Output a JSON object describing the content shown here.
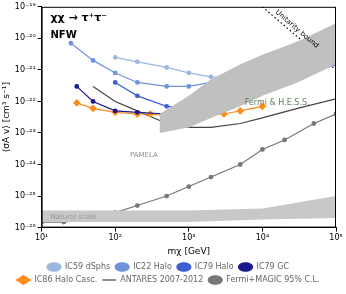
{
  "chart_data": {
    "type": "line",
    "title": "χχ → τ⁺τ⁻",
    "subtitle": "NFW",
    "x_label": "mχ [GeV]",
    "y_label": "⟨σA v⟩ [cm³ s⁻¹]",
    "log": true,
    "grid": false,
    "legend": "bottom",
    "xlim": [
      10,
      100000
    ],
    "ylim": [
      1e-26,
      1e-19
    ],
    "xticks": [
      {
        "value": 10,
        "label": "10¹"
      },
      {
        "value": 100,
        "label": "10²"
      },
      {
        "value": 1000,
        "label": "10³"
      },
      {
        "value": 10000,
        "label": "10⁴"
      },
      {
        "value": 100000,
        "label": "10⁵"
      }
    ],
    "yticks": [
      {
        "value": 1e-26,
        "label": "10⁻²⁶"
      },
      {
        "value": 1e-25,
        "label": "10⁻²⁵"
      },
      {
        "value": 1e-24,
        "label": "10⁻²⁴"
      },
      {
        "value": 1e-23,
        "label": "10⁻²³"
      },
      {
        "value": 1e-22,
        "label": "10⁻²²"
      },
      {
        "value": 1e-21,
        "label": "10⁻²¹"
      },
      {
        "value": 1e-20,
        "label": "10⁻²⁰"
      },
      {
        "value": 1e-19,
        "label": "10⁻¹⁹"
      }
    ],
    "regions": [
      {
        "name": "Natural scale",
        "color": "#c8c8c8",
        "x": [
          10,
          1000,
          10000,
          100000
        ],
        "lower": [
          1.5e-26,
          1.5e-26,
          1.8e-26,
          2e-26
        ],
        "upper": [
          3.5e-26,
          3.5e-26,
          4e-26,
          1e-25
        ]
      },
      {
        "name": "PAMELA",
        "color": "#c0c0c0",
        "x": [
          400,
          1000,
          2000,
          5000,
          10000,
          30000,
          100000
        ],
        "lower": [
          1e-23,
          1.5e-23,
          3e-23,
          7e-23,
          1.5e-22,
          4e-22,
          1.5e-21
        ],
        "upper": [
          4e-23,
          1.5e-22,
          5e-22,
          1.5e-21,
          3e-21,
          8e-21,
          3e-20
        ]
      },
      {
        "name": "Fermi & H.E.S.S.",
        "color": "#9fd89a",
        "x": [
          1500,
          2000,
          3000,
          5000,
          8000
        ],
        "lower": [
          3e-23,
          4e-23,
          5e-23,
          8e-23,
          1.5e-22
        ],
        "upper": [
          8e-23,
          1.5e-22,
          2.5e-22,
          3e-22,
          3e-22
        ]
      },
      {
        "color": "#2e9e3e",
        "x": [
          2500,
          3000,
          4000,
          5000
        ],
        "lower": [
          6e-23,
          7e-23,
          9e-23,
          1.2e-22
        ],
        "upper": [
          1e-22,
          1.6e-22,
          2e-22,
          1.8e-22
        ]
      }
    ],
    "reference_lines": [
      {
        "name": "Unitarity bound",
        "color": "#000000",
        "line_style": "dotted",
        "x": [
          10000,
          100000
        ],
        "values": [
          1e-19,
          1e-21
        ]
      }
    ],
    "series": [
      {
        "name": "IC59 dSphs",
        "color": "#9ab8e0",
        "marker": "circle",
        "x": [
          100,
          200,
          500,
          1000,
          2000,
          5000,
          10000
        ],
        "values": [
          2.5e-21,
          1.8e-21,
          1.2e-21,
          8e-22,
          6e-22,
          5e-22,
          6e-22
        ]
      },
      {
        "name": "IC22 Halo",
        "color": "#6f93db",
        "marker": "circle",
        "x": [
          25,
          50,
          100,
          200,
          500,
          1000,
          2000,
          5000,
          10000,
          30000
        ],
        "values": [
          7e-21,
          2e-21,
          8e-22,
          4e-22,
          3e-22,
          3e-22,
          4e-22,
          8e-22,
          1.5e-21,
          3e-21
        ]
      },
      {
        "name": "IC79 Halo",
        "color": "#3b5fd0",
        "marker": "circle",
        "x": [
          100,
          200,
          500,
          1000,
          2000,
          5000,
          10000,
          30000,
          100000
        ],
        "values": [
          4e-22,
          1.5e-22,
          7e-23,
          6e-23,
          7e-23,
          1.2e-22,
          2.5e-22,
          6e-22,
          1.5e-21
        ]
      },
      {
        "name": "IC79 GC",
        "color": "#1a1a8c",
        "marker": "circle",
        "x": [
          30,
          50,
          100,
          200,
          500,
          1000,
          2000,
          5000,
          10000
        ],
        "values": [
          3e-22,
          1e-22,
          5e-23,
          4.5e-23,
          4e-23,
          5e-23,
          1.2e-22,
          3e-22,
          6e-22
        ]
      },
      {
        "name": "IC86 Halo Casc.",
        "color": "#ff8c1a",
        "marker": "diamond",
        "x": [
          30,
          50,
          100,
          200,
          300,
          500,
          1000,
          2000,
          3000,
          5000,
          10000
        ],
        "values": [
          9e-23,
          6e-23,
          4.5e-23,
          4e-23,
          4e-23,
          3.5e-23,
          3.5e-23,
          4e-23,
          4e-23,
          5e-23,
          7e-23
        ]
      },
      {
        "name": "ANTARES 2007-2012",
        "color": "#444444",
        "marker": "none",
        "x": [
          50,
          100,
          200,
          500,
          1000,
          2000,
          5000,
          10000,
          30000,
          100000
        ],
        "values": [
          3e-22,
          1e-22,
          5e-23,
          2e-23,
          1.5e-23,
          1.5e-23,
          2e-23,
          3e-23,
          6e-23,
          1.2e-22
        ]
      },
      {
        "name": "Fermi+MAGIC 95% C.L.",
        "color": "#777777",
        "marker": "circle",
        "x": [
          10,
          20,
          50,
          100,
          200,
          500,
          1000,
          2000,
          5000,
          10000,
          20000,
          50000,
          100000
        ],
        "values": [
          1.5e-26,
          1.5e-26,
          2e-26,
          3e-26,
          5e-26,
          1e-25,
          2e-25,
          4e-25,
          1e-24,
          3e-24,
          6e-24,
          2e-23,
          4e-23
        ]
      }
    ]
  }
}
